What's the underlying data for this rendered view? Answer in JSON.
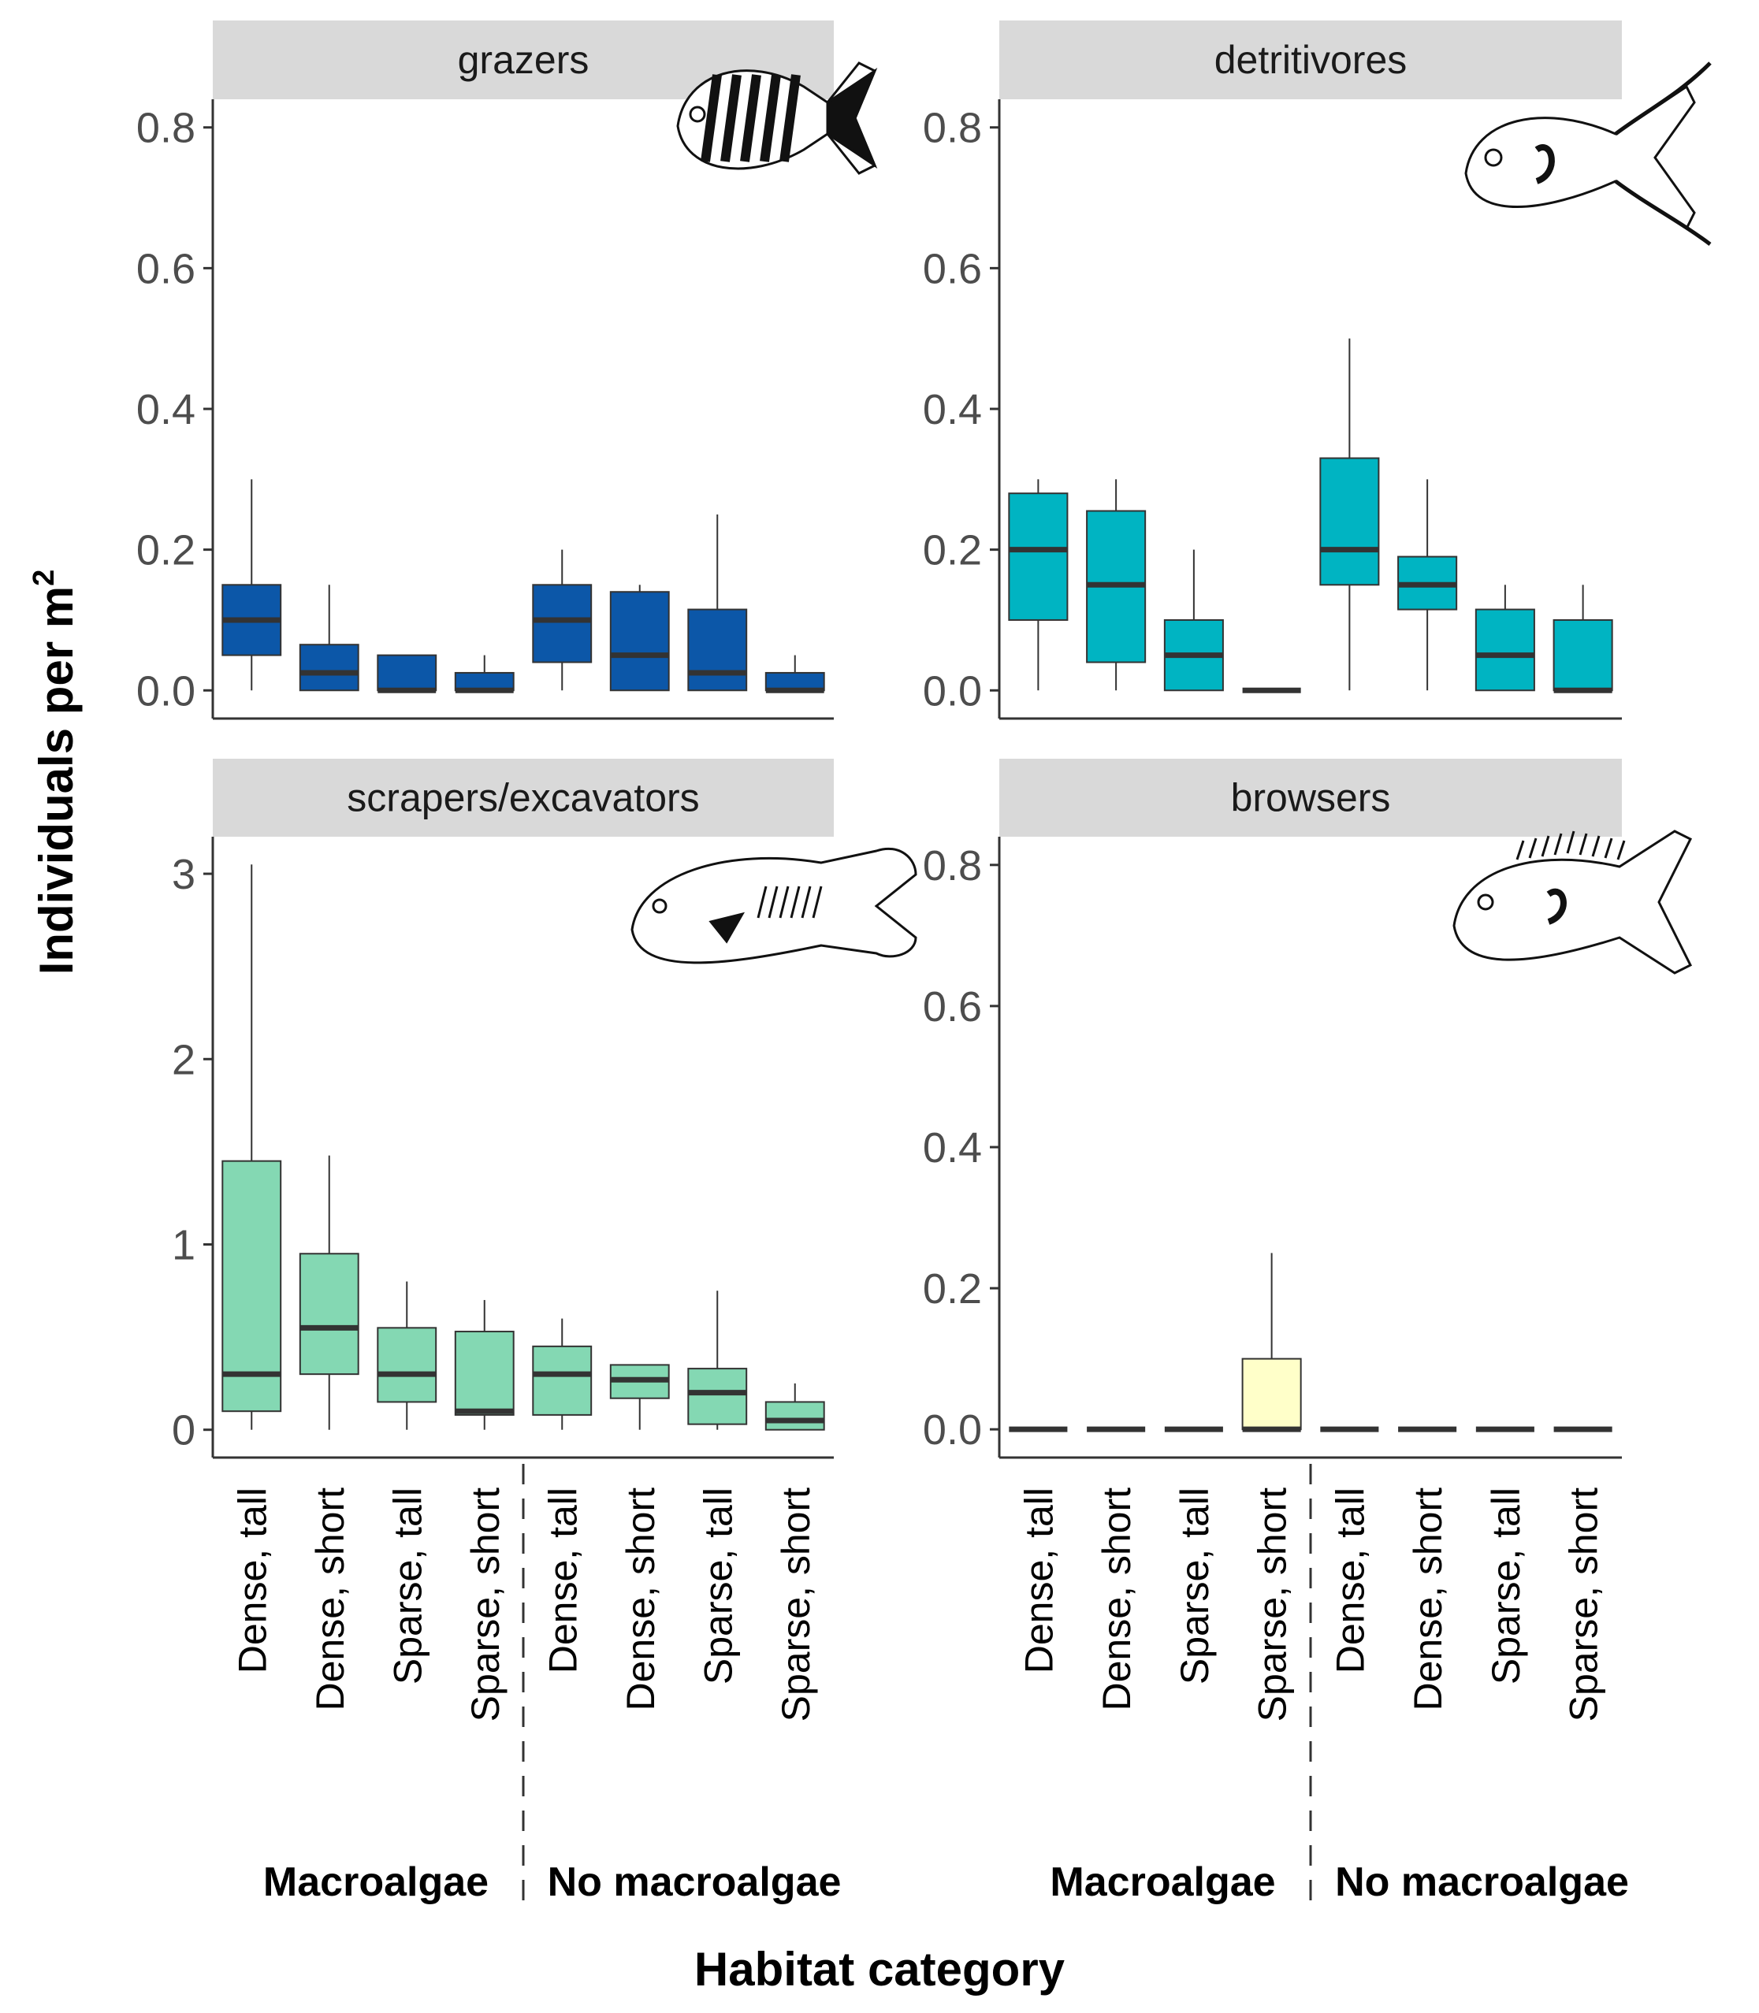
{
  "figure": {
    "ylabel_main": "Individuals per m",
    "ylabel_sup": "2",
    "xlabel": "Habitat category"
  },
  "colors": {
    "grazers": "#0c57a8",
    "detritivores": "#00b4c2",
    "scrapers": "#84d8b3",
    "browsers": "#ffffc9",
    "strip": "#d9d9d9",
    "median": "#333333",
    "outline": "#333333"
  },
  "chart_data": [
    {
      "type": "boxplot",
      "title": "grazers",
      "icon": "surgeonfish-icon",
      "categories": [
        "Dense, tall",
        "Dense, short",
        "Sparse, tall",
        "Sparse, short",
        "Dense, tall",
        "Dense, short",
        "Sparse, tall",
        "Sparse, short"
      ],
      "groups": [
        {
          "label": "Macroalgae",
          "size": 4
        },
        {
          "label": "No macroalgae",
          "size": 4
        }
      ],
      "yticks": [
        "0.0",
        "0.2",
        "0.4",
        "0.6",
        "0.8"
      ],
      "ytick_values": [
        0,
        0.2,
        0.4,
        0.6,
        0.8
      ],
      "ylim": [
        -0.04,
        0.84
      ],
      "boxes": [
        {
          "min": 0,
          "q1": 0.05,
          "median": 0.1,
          "q3": 0.15,
          "max": 0.3
        },
        {
          "min": 0,
          "q1": 0.0,
          "median": 0.025,
          "q3": 0.065,
          "max": 0.15
        },
        {
          "min": 0,
          "q1": 0.0,
          "median": 0.0,
          "q3": 0.05,
          "max": 0.05
        },
        {
          "min": 0,
          "q1": 0.0,
          "median": 0.0,
          "q3": 0.025,
          "max": 0.05
        },
        {
          "min": 0,
          "q1": 0.04,
          "median": 0.1,
          "q3": 0.15,
          "max": 0.2
        },
        {
          "min": 0,
          "q1": 0.0,
          "median": 0.05,
          "q3": 0.14,
          "max": 0.15
        },
        {
          "min": 0,
          "q1": 0.0,
          "median": 0.025,
          "q3": 0.115,
          "max": 0.25
        },
        {
          "min": 0,
          "q1": 0.0,
          "median": 0.0,
          "q3": 0.025,
          "max": 0.05
        }
      ]
    },
    {
      "type": "boxplot",
      "title": "detritivores",
      "icon": "tang-icon",
      "categories": [
        "Dense, tall",
        "Dense, short",
        "Sparse, tall",
        "Sparse, short",
        "Dense, tall",
        "Dense, short",
        "Sparse, tall",
        "Sparse, short"
      ],
      "groups": [
        {
          "label": "Macroalgae",
          "size": 4
        },
        {
          "label": "No macroalgae",
          "size": 4
        }
      ],
      "yticks": [
        "0.0",
        "0.2",
        "0.4",
        "0.6",
        "0.8"
      ],
      "ytick_values": [
        0,
        0.2,
        0.4,
        0.6,
        0.8
      ],
      "ylim": [
        -0.04,
        0.84
      ],
      "boxes": [
        {
          "min": 0,
          "q1": 0.1,
          "median": 0.2,
          "q3": 0.28,
          "max": 0.3
        },
        {
          "min": 0,
          "q1": 0.04,
          "median": 0.15,
          "q3": 0.255,
          "max": 0.3
        },
        {
          "min": 0,
          "q1": 0.0,
          "median": 0.05,
          "q3": 0.1,
          "max": 0.2
        },
        {
          "min": 0,
          "q1": 0.0,
          "median": 0.0,
          "q3": 0.0,
          "max": 0.0
        },
        {
          "min": 0,
          "q1": 0.15,
          "median": 0.2,
          "q3": 0.33,
          "max": 0.5
        },
        {
          "min": 0,
          "q1": 0.115,
          "median": 0.15,
          "q3": 0.19,
          "max": 0.3
        },
        {
          "min": 0,
          "q1": 0.0,
          "median": 0.05,
          "q3": 0.115,
          "max": 0.15
        },
        {
          "min": 0,
          "q1": 0.0,
          "median": 0.0,
          "q3": 0.1,
          "max": 0.15
        }
      ]
    },
    {
      "type": "boxplot",
      "title": "scrapers/excavators",
      "icon": "parrotfish-icon",
      "categories": [
        "Dense, tall",
        "Dense, short",
        "Sparse, tall",
        "Sparse, short",
        "Dense, tall",
        "Dense, short",
        "Sparse, tall",
        "Sparse, short"
      ],
      "groups": [
        {
          "label": "Macroalgae",
          "size": 4
        },
        {
          "label": "No macroalgae",
          "size": 4
        }
      ],
      "yticks": [
        "0",
        "1",
        "2",
        "3"
      ],
      "ytick_values": [
        0,
        1,
        2,
        3
      ],
      "ylim": [
        -0.15,
        3.2
      ],
      "boxes": [
        {
          "min": 0,
          "q1": 0.1,
          "median": 0.3,
          "q3": 1.45,
          "max": 3.05
        },
        {
          "min": 0,
          "q1": 0.3,
          "median": 0.55,
          "q3": 0.95,
          "max": 1.48
        },
        {
          "min": 0,
          "q1": 0.15,
          "median": 0.3,
          "q3": 0.55,
          "max": 0.8
        },
        {
          "min": 0,
          "q1": 0.08,
          "median": 0.1,
          "q3": 0.53,
          "max": 0.7
        },
        {
          "min": 0,
          "q1": 0.08,
          "median": 0.3,
          "q3": 0.45,
          "max": 0.6
        },
        {
          "min": 0,
          "q1": 0.17,
          "median": 0.27,
          "q3": 0.35,
          "max": 0.35
        },
        {
          "min": 0,
          "q1": 0.03,
          "median": 0.2,
          "q3": 0.33,
          "max": 0.75
        },
        {
          "min": 0,
          "q1": 0.0,
          "median": 0.05,
          "q3": 0.15,
          "max": 0.25
        }
      ]
    },
    {
      "type": "boxplot",
      "title": "browsers",
      "icon": "rabbitfish-icon",
      "categories": [
        "Dense, tall",
        "Dense, short",
        "Sparse, tall",
        "Sparse, short",
        "Dense, tall",
        "Dense, short",
        "Sparse, tall",
        "Sparse, short"
      ],
      "groups": [
        {
          "label": "Macroalgae",
          "size": 4
        },
        {
          "label": "No macroalgae",
          "size": 4
        }
      ],
      "yticks": [
        "0.0",
        "0.2",
        "0.4",
        "0.6",
        "0.8"
      ],
      "ytick_values": [
        0,
        0.2,
        0.4,
        0.6,
        0.8
      ],
      "ylim": [
        -0.04,
        0.84
      ],
      "boxes": [
        {
          "min": 0,
          "q1": 0,
          "median": 0,
          "q3": 0,
          "max": 0
        },
        {
          "min": 0,
          "q1": 0,
          "median": 0,
          "q3": 0,
          "max": 0
        },
        {
          "min": 0,
          "q1": 0,
          "median": 0,
          "q3": 0,
          "max": 0
        },
        {
          "min": 0,
          "q1": 0.0,
          "median": 0.0,
          "q3": 0.1,
          "max": 0.25
        },
        {
          "min": 0,
          "q1": 0,
          "median": 0,
          "q3": 0,
          "max": 0
        },
        {
          "min": 0,
          "q1": 0,
          "median": 0,
          "q3": 0,
          "max": 0
        },
        {
          "min": 0,
          "q1": 0,
          "median": 0,
          "q3": 0,
          "max": 0
        },
        {
          "min": 0,
          "q1": 0,
          "median": 0,
          "q3": 0,
          "max": 0
        }
      ]
    }
  ]
}
